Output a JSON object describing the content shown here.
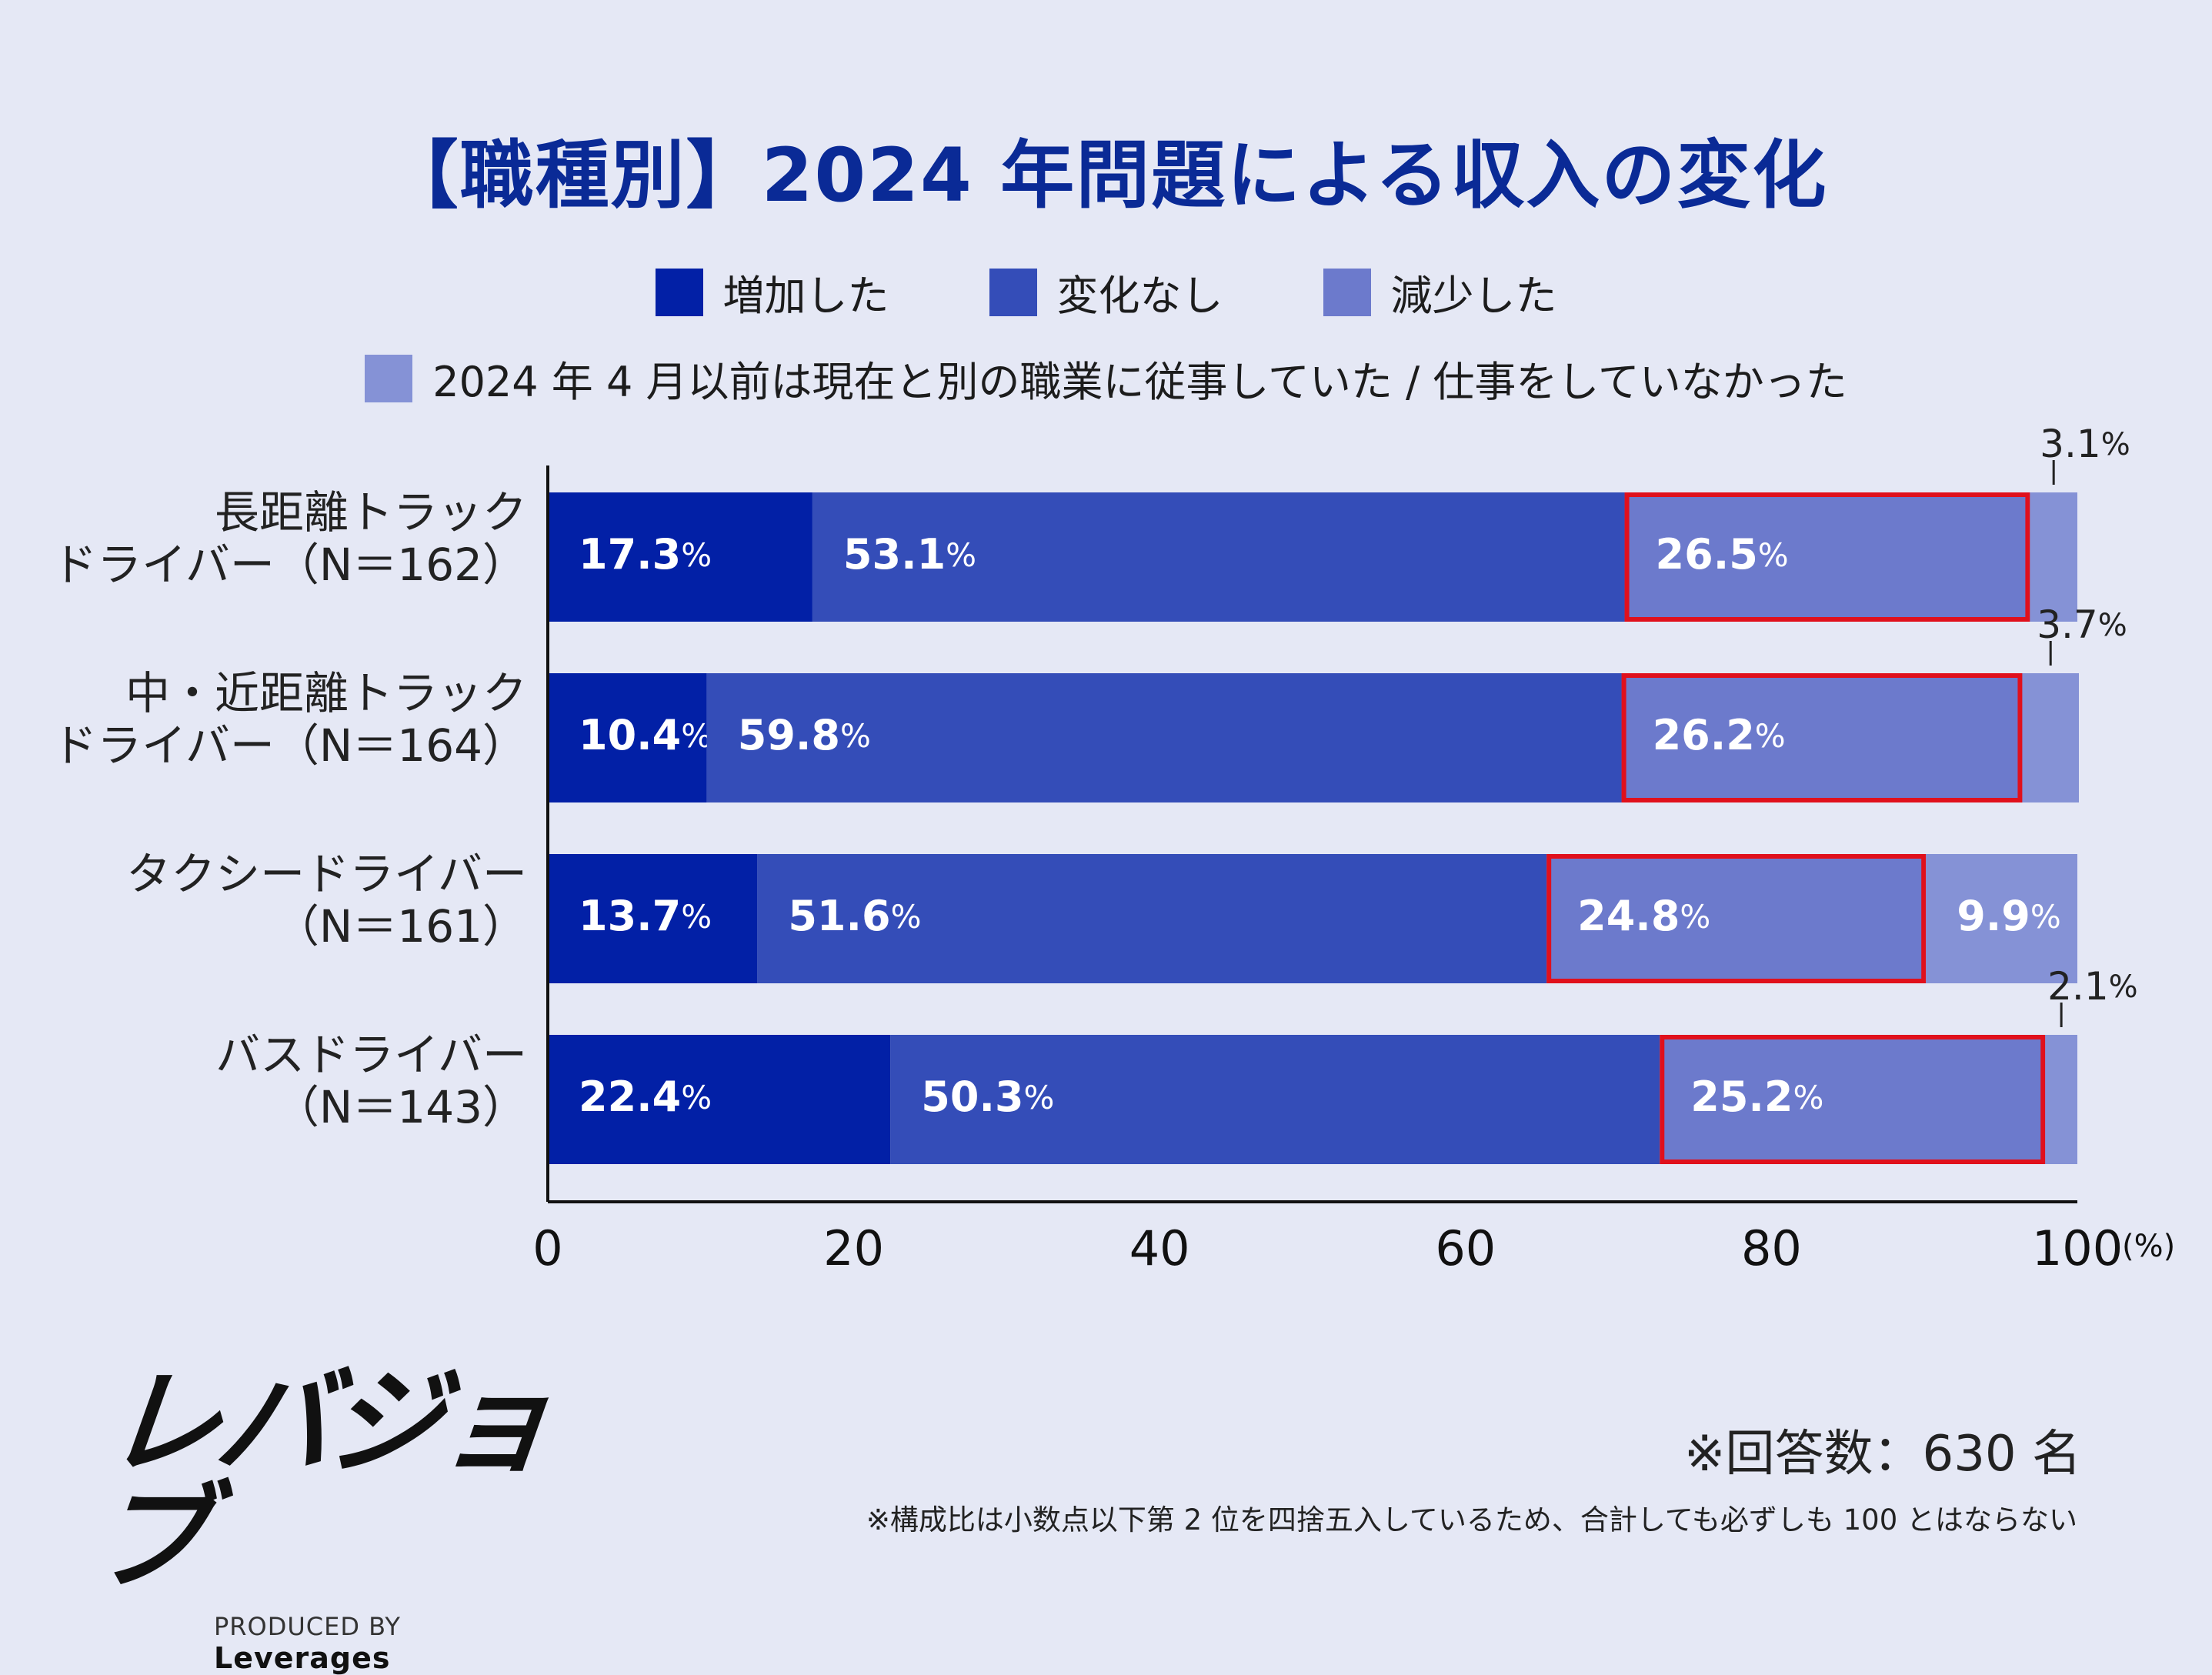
{
  "title": "【職種別】2024 年問題による収入の変化",
  "legend": [
    {
      "label": "増加した",
      "color": "#0220a6"
    },
    {
      "label": "変化なし",
      "color": "#344db8"
    },
    {
      "label": "減少した",
      "color": "#6c7acc"
    },
    {
      "label": "2024 年 4 月以前は現在と別の職業に従事していた / 仕事をしていなかった",
      "color": "#8592d6"
    }
  ],
  "chart_data": {
    "type": "bar",
    "orientation": "horizontal",
    "stacked": true,
    "categories": [
      [
        "長距離トラック",
        "ドライバー（N＝162）"
      ],
      [
        "中・近距離トラック",
        "ドライバー（N＝164）"
      ],
      [
        "タクシードライバー",
        "（N＝161）"
      ],
      [
        "バスドライバー",
        "（N＝143）"
      ]
    ],
    "series": [
      {
        "name": "増加した",
        "values": [
          17.3,
          10.4,
          13.7,
          22.4
        ],
        "color": "#0220a6"
      },
      {
        "name": "変化なし",
        "values": [
          53.1,
          59.8,
          51.6,
          50.3
        ],
        "color": "#344db8"
      },
      {
        "name": "減少した",
        "values": [
          26.5,
          26.2,
          24.8,
          25.2
        ],
        "color": "#6c7acc",
        "highlighted": true,
        "highlight_color": "#e0101c"
      },
      {
        "name": "2024 年 4 月以前は現在と別の職業に従事していた / 仕事をしていなかった",
        "values": [
          3.1,
          3.7,
          9.9,
          2.1
        ],
        "color": "#8592d6"
      }
    ],
    "value_suffix": "%",
    "xlim": [
      0,
      100
    ],
    "xticks": [
      "0",
      "20",
      "40",
      "60",
      "80",
      "100"
    ],
    "x_unit": "(%)"
  },
  "footer": {
    "logo_text": "レバジョブ",
    "produced_by": "PRODUCED BY",
    "brand": "Leverages",
    "respondents": "※回答数：630 名",
    "note": "※構成比は小数点以下第 2 位を四捨五入しているため、合計しても必ずしも 100 とはならない"
  }
}
